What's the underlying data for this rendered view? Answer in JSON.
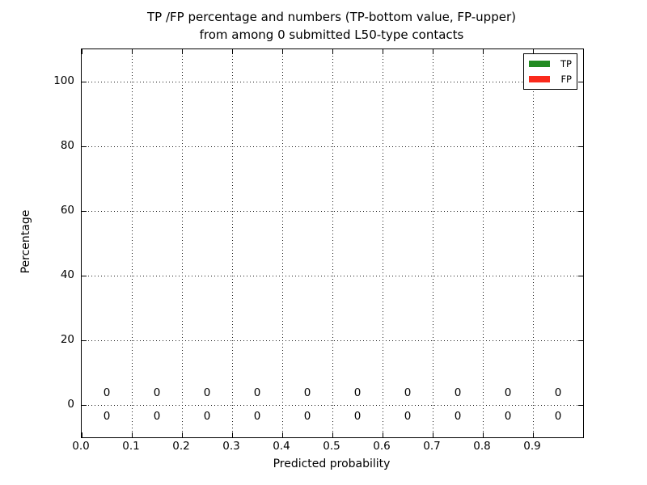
{
  "chart_data": {
    "type": "bar",
    "title_lines": [
      "TP /FP percentage and numbers (TP-bottom value, FP-upper)",
      "from among 0 submitted L50-type contacts"
    ],
    "xlabel": "Predicted probability",
    "ylabel": "Percentage",
    "xlim": [
      0.0,
      1.0
    ],
    "ylim": [
      -10,
      110
    ],
    "xtick_values": [
      0.0,
      0.1,
      0.2,
      0.3,
      0.4,
      0.5,
      0.6,
      0.7,
      0.8,
      0.9
    ],
    "xtick_labels": [
      "0.0",
      "0.1",
      "0.2",
      "0.3",
      "0.4",
      "0.5",
      "0.6",
      "0.7",
      "0.8",
      "0.9"
    ],
    "ytick_values": [
      0,
      20,
      40,
      60,
      80,
      100
    ],
    "ytick_labels": [
      "0",
      "20",
      "40",
      "60",
      "80",
      "100"
    ],
    "grid": "dotted",
    "legend_position": "upper-right",
    "bar_centers": [
      0.05,
      0.15,
      0.25,
      0.35,
      0.45,
      0.55,
      0.65,
      0.75,
      0.85,
      0.95
    ],
    "series": [
      {
        "name": "TP",
        "color": "#228b22",
        "label_row": "bottom",
        "values": [
          0,
          0,
          0,
          0,
          0,
          0,
          0,
          0,
          0,
          0
        ]
      },
      {
        "name": "FP",
        "color": "#fa2a1c",
        "label_row": "upper",
        "values": [
          0,
          0,
          0,
          0,
          0,
          0,
          0,
          0,
          0,
          0
        ]
      }
    ]
  }
}
